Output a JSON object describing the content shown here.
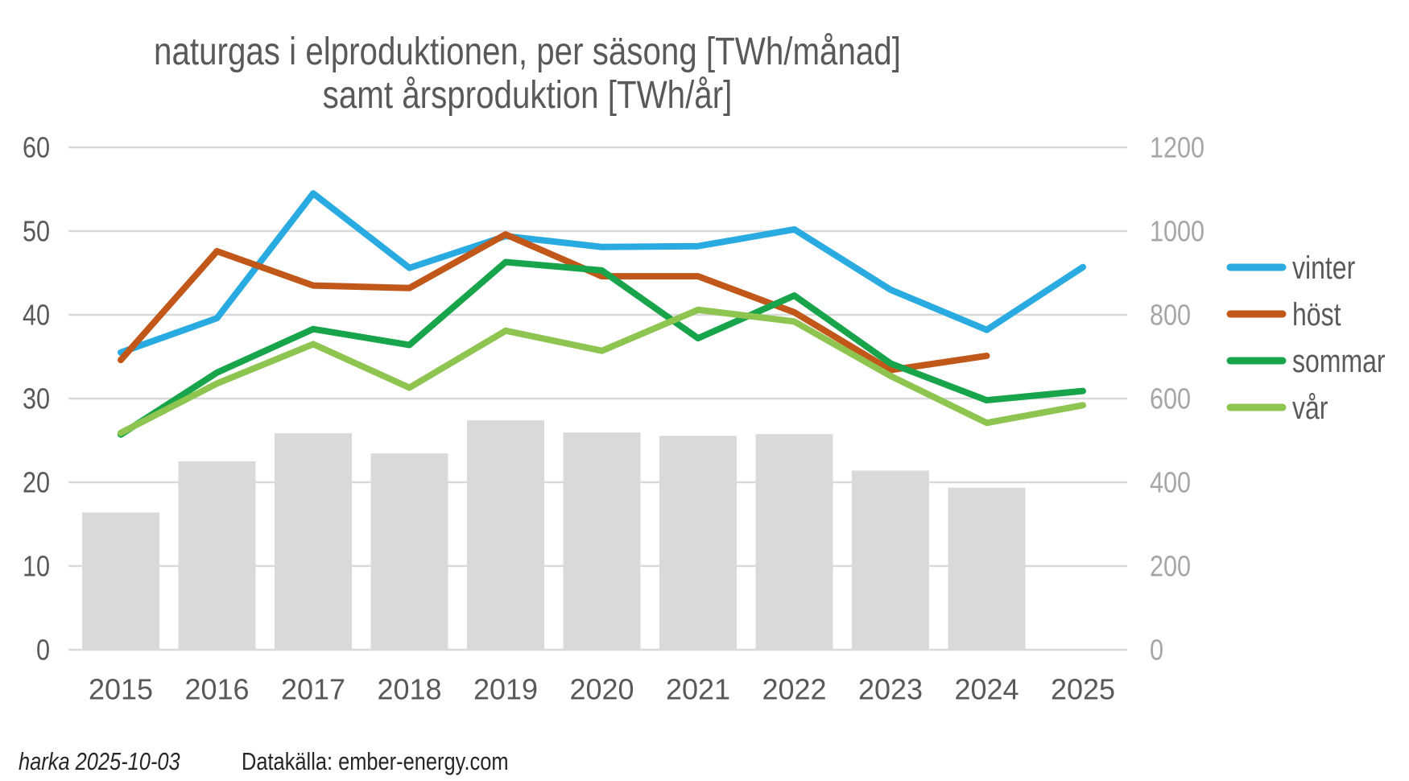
{
  "title": {
    "line1": "naturgas i elproduktionen, per säsong [TWh/månad]",
    "line2": "samt årsproduktion [TWh/år]"
  },
  "footer": {
    "credit": "harka 2025-10-03",
    "source": "Datakälla: ember-energy.com"
  },
  "colors": {
    "vinter": "#29ABE2",
    "host": "#C2571A",
    "sommar": "#18A44A",
    "var": "#8DC550",
    "bars": "#D9D9D9",
    "gridline": "#D9D9D9",
    "axis_text_dark": "#595959",
    "axis_text_light": "#A6A6A6",
    "footer_text": "#262626"
  },
  "chart_data": {
    "type": "line+bar combo",
    "title": "naturgas i elproduktionen, per säsong [TWh/månad] samt årsproduktion [TWh/år]",
    "x": [
      2015,
      2016,
      2017,
      2018,
      2019,
      2020,
      2021,
      2022,
      2023,
      2024,
      2025
    ],
    "series": [
      {
        "name": "vinter",
        "axis": "left",
        "unit": "TWh/månad",
        "color": "#29ABE2",
        "values": [
          35.5,
          39.6,
          54.5,
          45.6,
          49.4,
          48.1,
          48.2,
          50.2,
          43.0,
          38.2,
          45.7
        ]
      },
      {
        "name": "höst",
        "axis": "left",
        "unit": "TWh/månad",
        "color": "#C2571A",
        "values": [
          34.6,
          47.6,
          43.5,
          43.2,
          49.6,
          44.6,
          44.6,
          40.3,
          33.4,
          35.1,
          null
        ]
      },
      {
        "name": "sommar",
        "axis": "left",
        "unit": "TWh/månad",
        "color": "#18A44A",
        "values": [
          25.7,
          33.1,
          38.3,
          36.4,
          46.3,
          45.3,
          37.2,
          42.3,
          34.2,
          29.8,
          30.9
        ]
      },
      {
        "name": "vår",
        "axis": "left",
        "unit": "TWh/månad",
        "color": "#8DC550",
        "values": [
          25.9,
          31.8,
          36.5,
          31.3,
          38.1,
          35.7,
          40.6,
          39.2,
          32.7,
          27.1,
          29.2
        ]
      }
    ],
    "bar_series": {
      "name": "årsproduktion",
      "axis": "right",
      "unit": "TWh/år",
      "color": "#D9D9D9",
      "values": [
        328,
        450,
        517,
        469,
        548,
        519,
        511,
        515,
        428,
        387,
        null
      ]
    },
    "left_axis": {
      "range": [
        0,
        60
      ],
      "ticks": [
        0,
        10,
        20,
        30,
        40,
        50,
        60
      ]
    },
    "right_axis": {
      "range": [
        0,
        1200
      ],
      "ticks": [
        0,
        200,
        400,
        600,
        800,
        1000,
        1200
      ]
    },
    "grid": true,
    "legend_position": "right",
    "legend": [
      "vinter",
      "höst",
      "sommar",
      "vår"
    ]
  }
}
